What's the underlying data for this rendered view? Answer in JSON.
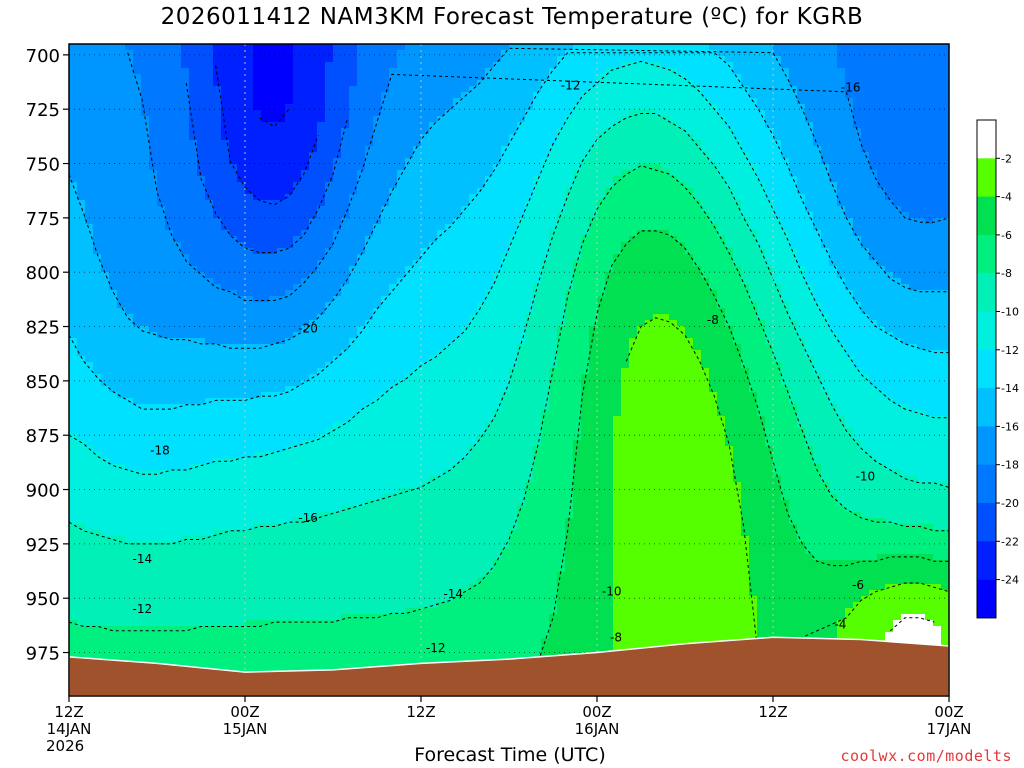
{
  "chart_data": {
    "type": "heatmap",
    "title": "2026011412 NAM3KM Forecast Temperature (ºC) for KGRB",
    "xlabel": "Forecast Time (UTC)",
    "ylabel": "",
    "y_axis": {
      "reversed": true,
      "range": [
        695,
        995
      ],
      "ticks": [
        700,
        725,
        750,
        775,
        800,
        825,
        850,
        875,
        900,
        925,
        950,
        975
      ]
    },
    "x_axis": {
      "range_hours": [
        0,
        60
      ],
      "ticks": [
        {
          "hour": 0,
          "lines": [
            "12Z",
            "14JAN",
            "2026"
          ]
        },
        {
          "hour": 12,
          "lines": [
            "00Z",
            "15JAN"
          ]
        },
        {
          "hour": 24,
          "lines": [
            "12Z"
          ]
        },
        {
          "hour": 36,
          "lines": [
            "00Z",
            "16JAN"
          ]
        },
        {
          "hour": 48,
          "lines": [
            "12Z"
          ]
        },
        {
          "hour": 60,
          "lines": [
            "00Z",
            "17JAN"
          ]
        }
      ]
    },
    "colorbar": {
      "levels": [
        -2,
        -4,
        -6,
        -8,
        -10,
        -12,
        -14,
        -16,
        -18,
        -20,
        -22,
        -24
      ],
      "labels": [
        "-2",
        "-4",
        "-6",
        "-8",
        "-10",
        "-12",
        "-14",
        "-16",
        "-18",
        "-20",
        "-22",
        "-24"
      ],
      "colors": [
        "#ffffff",
        "#55ff00",
        "#00e050",
        "#00f080",
        "#00f0b8",
        "#00f0e0",
        "#00e0ff",
        "#00c0ff",
        "#0096ff",
        "#0078ff",
        "#0050ff",
        "#0020ff",
        "#0000ff"
      ]
    },
    "contour_labels": [
      {
        "text": "-20",
        "hour": 16.3,
        "p": 826
      },
      {
        "text": "-18",
        "hour": 6.2,
        "p": 882
      },
      {
        "text": "-16",
        "hour": 16.3,
        "p": 913
      },
      {
        "text": "-16",
        "hour": 53.3,
        "p": 715
      },
      {
        "text": "-14",
        "hour": 5.0,
        "p": 932
      },
      {
        "text": "-14",
        "hour": 26.2,
        "p": 948
      },
      {
        "text": "-12",
        "hour": 5.0,
        "p": 955
      },
      {
        "text": "-12",
        "hour": 25.0,
        "p": 973
      },
      {
        "text": "-12",
        "hour": 34.2,
        "p": 714
      },
      {
        "text": "-10",
        "hour": 37.0,
        "p": 947
      },
      {
        "text": "-10",
        "hour": 54.3,
        "p": 894
      },
      {
        "text": "-8",
        "hour": 43.9,
        "p": 822
      },
      {
        "text": "-8",
        "hour": 37.3,
        "p": 968
      },
      {
        "text": "-6",
        "hour": 53.8,
        "p": 944
      },
      {
        "text": "-4",
        "hour": 52.6,
        "p": 962
      }
    ],
    "bands": [
      {
        "level": -24,
        "cells": [
          [
            11,
            1,
            2.5,
            8
          ],
          [
            12,
            1,
            3,
            12
          ],
          [
            13,
            1,
            4,
            13
          ],
          [
            14,
            1,
            5,
            14
          ],
          [
            15,
            1,
            5.5,
            15
          ],
          [
            16,
            1,
            6,
            16
          ]
        ]
      }
    ],
    "legend": "right",
    "grid": true,
    "credit": "coolwx.com/modelts"
  }
}
